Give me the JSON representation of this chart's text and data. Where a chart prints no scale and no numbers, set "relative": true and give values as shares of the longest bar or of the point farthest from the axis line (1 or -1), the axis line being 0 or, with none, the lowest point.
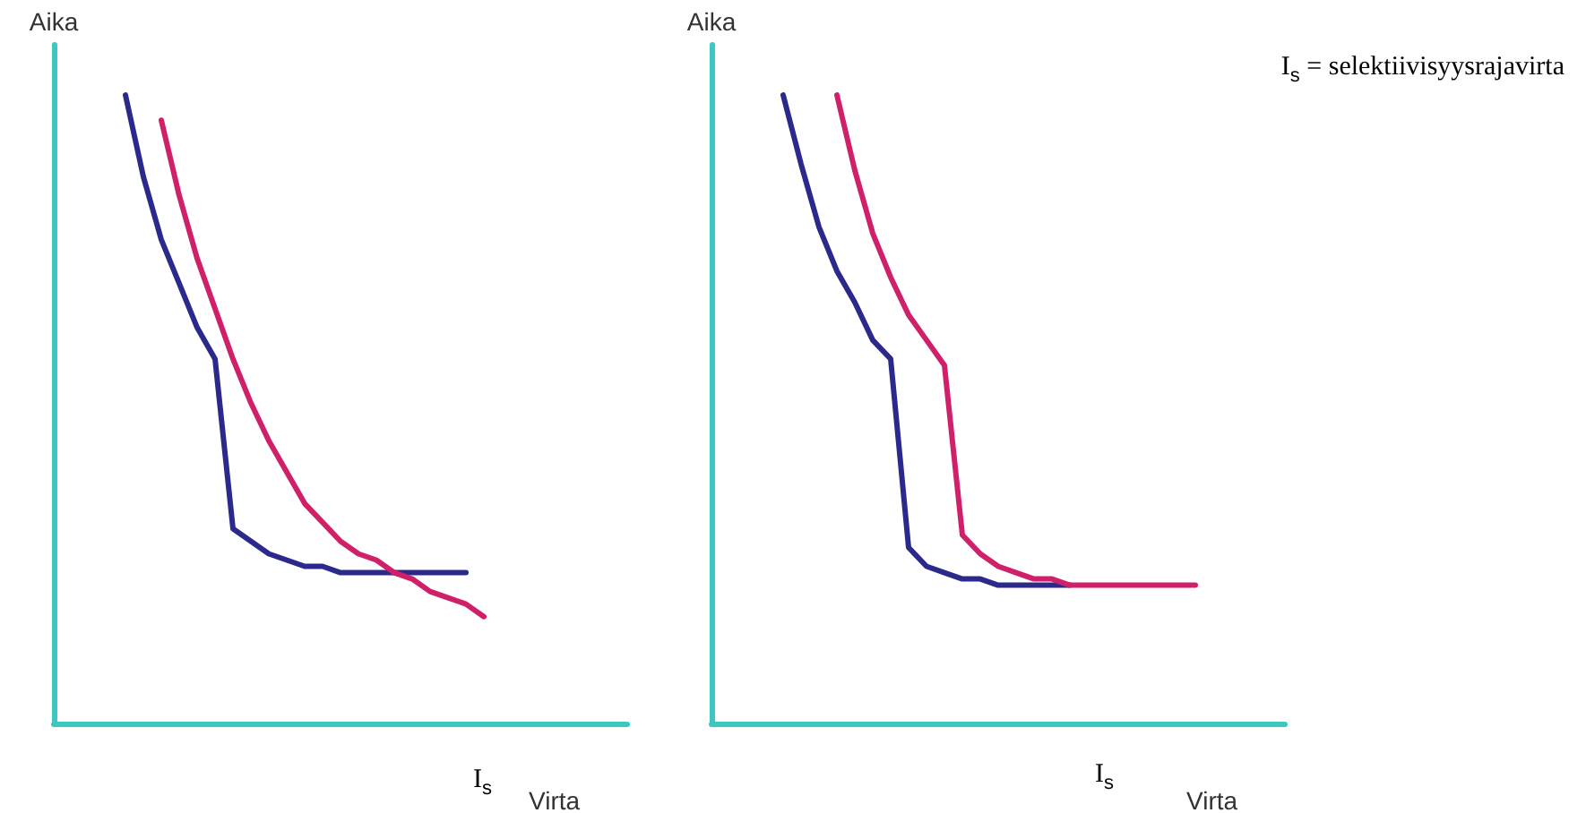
{
  "chart_data": [
    {
      "type": "line",
      "relative": true,
      "xlabel": "Virta",
      "ylabel": "Aika",
      "grid": false,
      "marker": "none",
      "line_style": "solid",
      "categories": [
        null,
        null,
        null,
        null,
        null,
        null,
        null,
        null,
        null,
        null,
        null,
        null,
        null,
        null,
        null,
        null,
        null,
        null,
        null,
        null,
        null,
        null,
        null,
        null,
        null,
        null,
        null,
        null,
        null,
        null,
        null,
        null,
        null
      ],
      "series": [
        {
          "color": "#2b2a8c",
          "values": [
            null,
            null,
            null,
            null,
            1.0,
            0.87,
            0.77,
            0.7,
            0.63,
            0.58,
            0.31,
            0.29,
            0.27,
            0.26,
            0.25,
            0.25,
            0.24,
            0.24,
            0.24,
            0.24,
            0.24,
            0.24,
            0.24,
            0.24,
            null,
            null,
            null,
            null,
            null,
            null,
            null,
            null,
            null
          ]
        },
        {
          "color": "#d0206a",
          "values": [
            null,
            null,
            null,
            null,
            null,
            null,
            0.96,
            0.84,
            0.74,
            0.66,
            0.58,
            0.51,
            0.45,
            0.4,
            0.35,
            0.32,
            0.29,
            0.27,
            0.26,
            0.24,
            0.23,
            0.21,
            0.2,
            0.19,
            0.17,
            null,
            null,
            null,
            null,
            null,
            null,
            null,
            null
          ]
        }
      ],
      "annotations": [
        "I$_{s}$"
      ]
    },
    {
      "type": "line",
      "relative": true,
      "xlabel": "Virta",
      "ylabel": "Aika",
      "grid": false,
      "marker": "none",
      "line_style": "solid",
      "categories": [
        null,
        null,
        null,
        null,
        null,
        null,
        null,
        null,
        null,
        null,
        null,
        null,
        null,
        null,
        null,
        null,
        null,
        null,
        null,
        null,
        null,
        null,
        null,
        null,
        null,
        null,
        null,
        null,
        null,
        null,
        null,
        null,
        null
      ],
      "series": [
        {
          "color": "#2b2a8c",
          "values": [
            null,
            null,
            null,
            null,
            1.0,
            0.89,
            0.79,
            0.72,
            0.67,
            0.61,
            0.58,
            0.28,
            0.25,
            0.24,
            0.23,
            0.23,
            0.22,
            0.22,
            0.22,
            0.22,
            0.22,
            null,
            null,
            null,
            null,
            null,
            null,
            null,
            null,
            null,
            null,
            null,
            null
          ]
        },
        {
          "color": "#d0206a",
          "values": [
            null,
            null,
            null,
            null,
            null,
            null,
            null,
            1.0,
            0.88,
            0.78,
            0.71,
            0.65,
            0.61,
            0.57,
            0.3,
            0.27,
            0.25,
            0.24,
            0.23,
            0.23,
            0.22,
            0.22,
            0.22,
            0.22,
            0.22,
            0.22,
            0.22,
            0.22,
            null,
            null,
            null,
            null,
            null
          ]
        }
      ],
      "annotations": [
        "I$_{s}$",
        "I$_{s}$ = selektiivisyysrajavirta"
      ]
    }
  ]
}
